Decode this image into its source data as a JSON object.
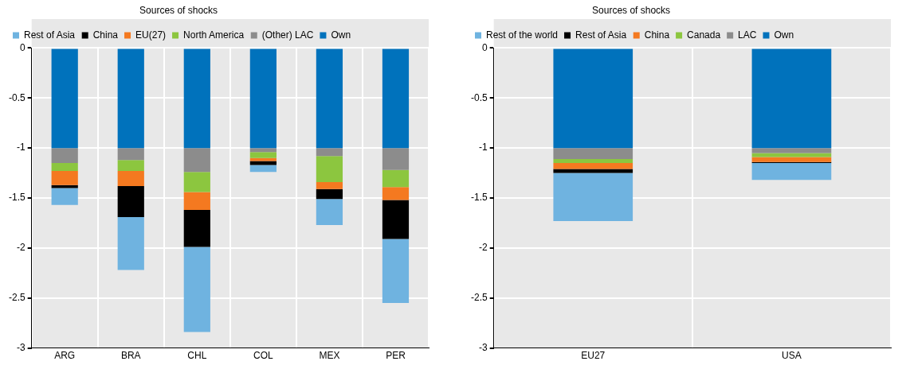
{
  "chart_data": [
    {
      "type": "bar",
      "stacked": true,
      "legend_title": "Sources of shocks",
      "categories": [
        "ARG",
        "BRA",
        "CHL",
        "COL",
        "MEX",
        "PER"
      ],
      "ylim": [
        -3,
        0
      ],
      "yticks": [
        0,
        -0.5,
        -1,
        -1.5,
        -2,
        -2.5,
        -3
      ],
      "grid": true,
      "legend": "top",
      "series": [
        {
          "name": "Own",
          "color": "#0072bc",
          "values": [
            -1,
            -1,
            -1,
            -1,
            -1,
            -1
          ]
        },
        {
          "name": "(Other) LAC",
          "color": "#8c8c8c",
          "values": [
            -0.15,
            -0.12,
            -0.24,
            -0.04,
            -0.08,
            -0.22
          ]
        },
        {
          "name": "North America",
          "color": "#8cc63f",
          "values": [
            -0.08,
            -0.11,
            -0.2,
            -0.06,
            -0.26,
            -0.17
          ]
        },
        {
          "name": "EU(27)",
          "color": "#f47920",
          "values": [
            -0.14,
            -0.15,
            -0.18,
            -0.03,
            -0.07,
            -0.13
          ]
        },
        {
          "name": "China",
          "color": "#000000",
          "values": [
            -0.03,
            -0.31,
            -0.37,
            -0.04,
            -0.1,
            -0.39
          ]
        },
        {
          "name": "Rest of Asia",
          "color": "#6fb3e0",
          "values": [
            -0.17,
            -0.53,
            -0.85,
            -0.07,
            -0.26,
            -0.64
          ]
        }
      ]
    },
    {
      "type": "bar",
      "stacked": true,
      "legend_title": "Sources of shocks",
      "categories": [
        "EU27",
        "USA"
      ],
      "ylim": [
        -3,
        0
      ],
      "yticks": [
        0,
        -0.5,
        -1,
        -1.5,
        -2,
        -2.5,
        -3
      ],
      "grid": true,
      "legend": "top",
      "series": [
        {
          "name": "Own",
          "color": "#0072bc",
          "values": [
            -1,
            -1
          ]
        },
        {
          "name": "LAC",
          "color": "#8c8c8c",
          "values": [
            -0.11,
            -0.05
          ]
        },
        {
          "name": "Canada",
          "color": "#8cc63f",
          "values": [
            -0.04,
            -0.04
          ]
        },
        {
          "name": "China",
          "color": "#f47920",
          "values": [
            -0.06,
            -0.05
          ]
        },
        {
          "name": "Rest of Asia",
          "color": "#000000",
          "values": [
            -0.04,
            -0.01
          ]
        },
        {
          "name": "Rest of the world",
          "color": "#6fb3e0",
          "values": [
            -0.48,
            -0.17
          ]
        }
      ]
    }
  ]
}
